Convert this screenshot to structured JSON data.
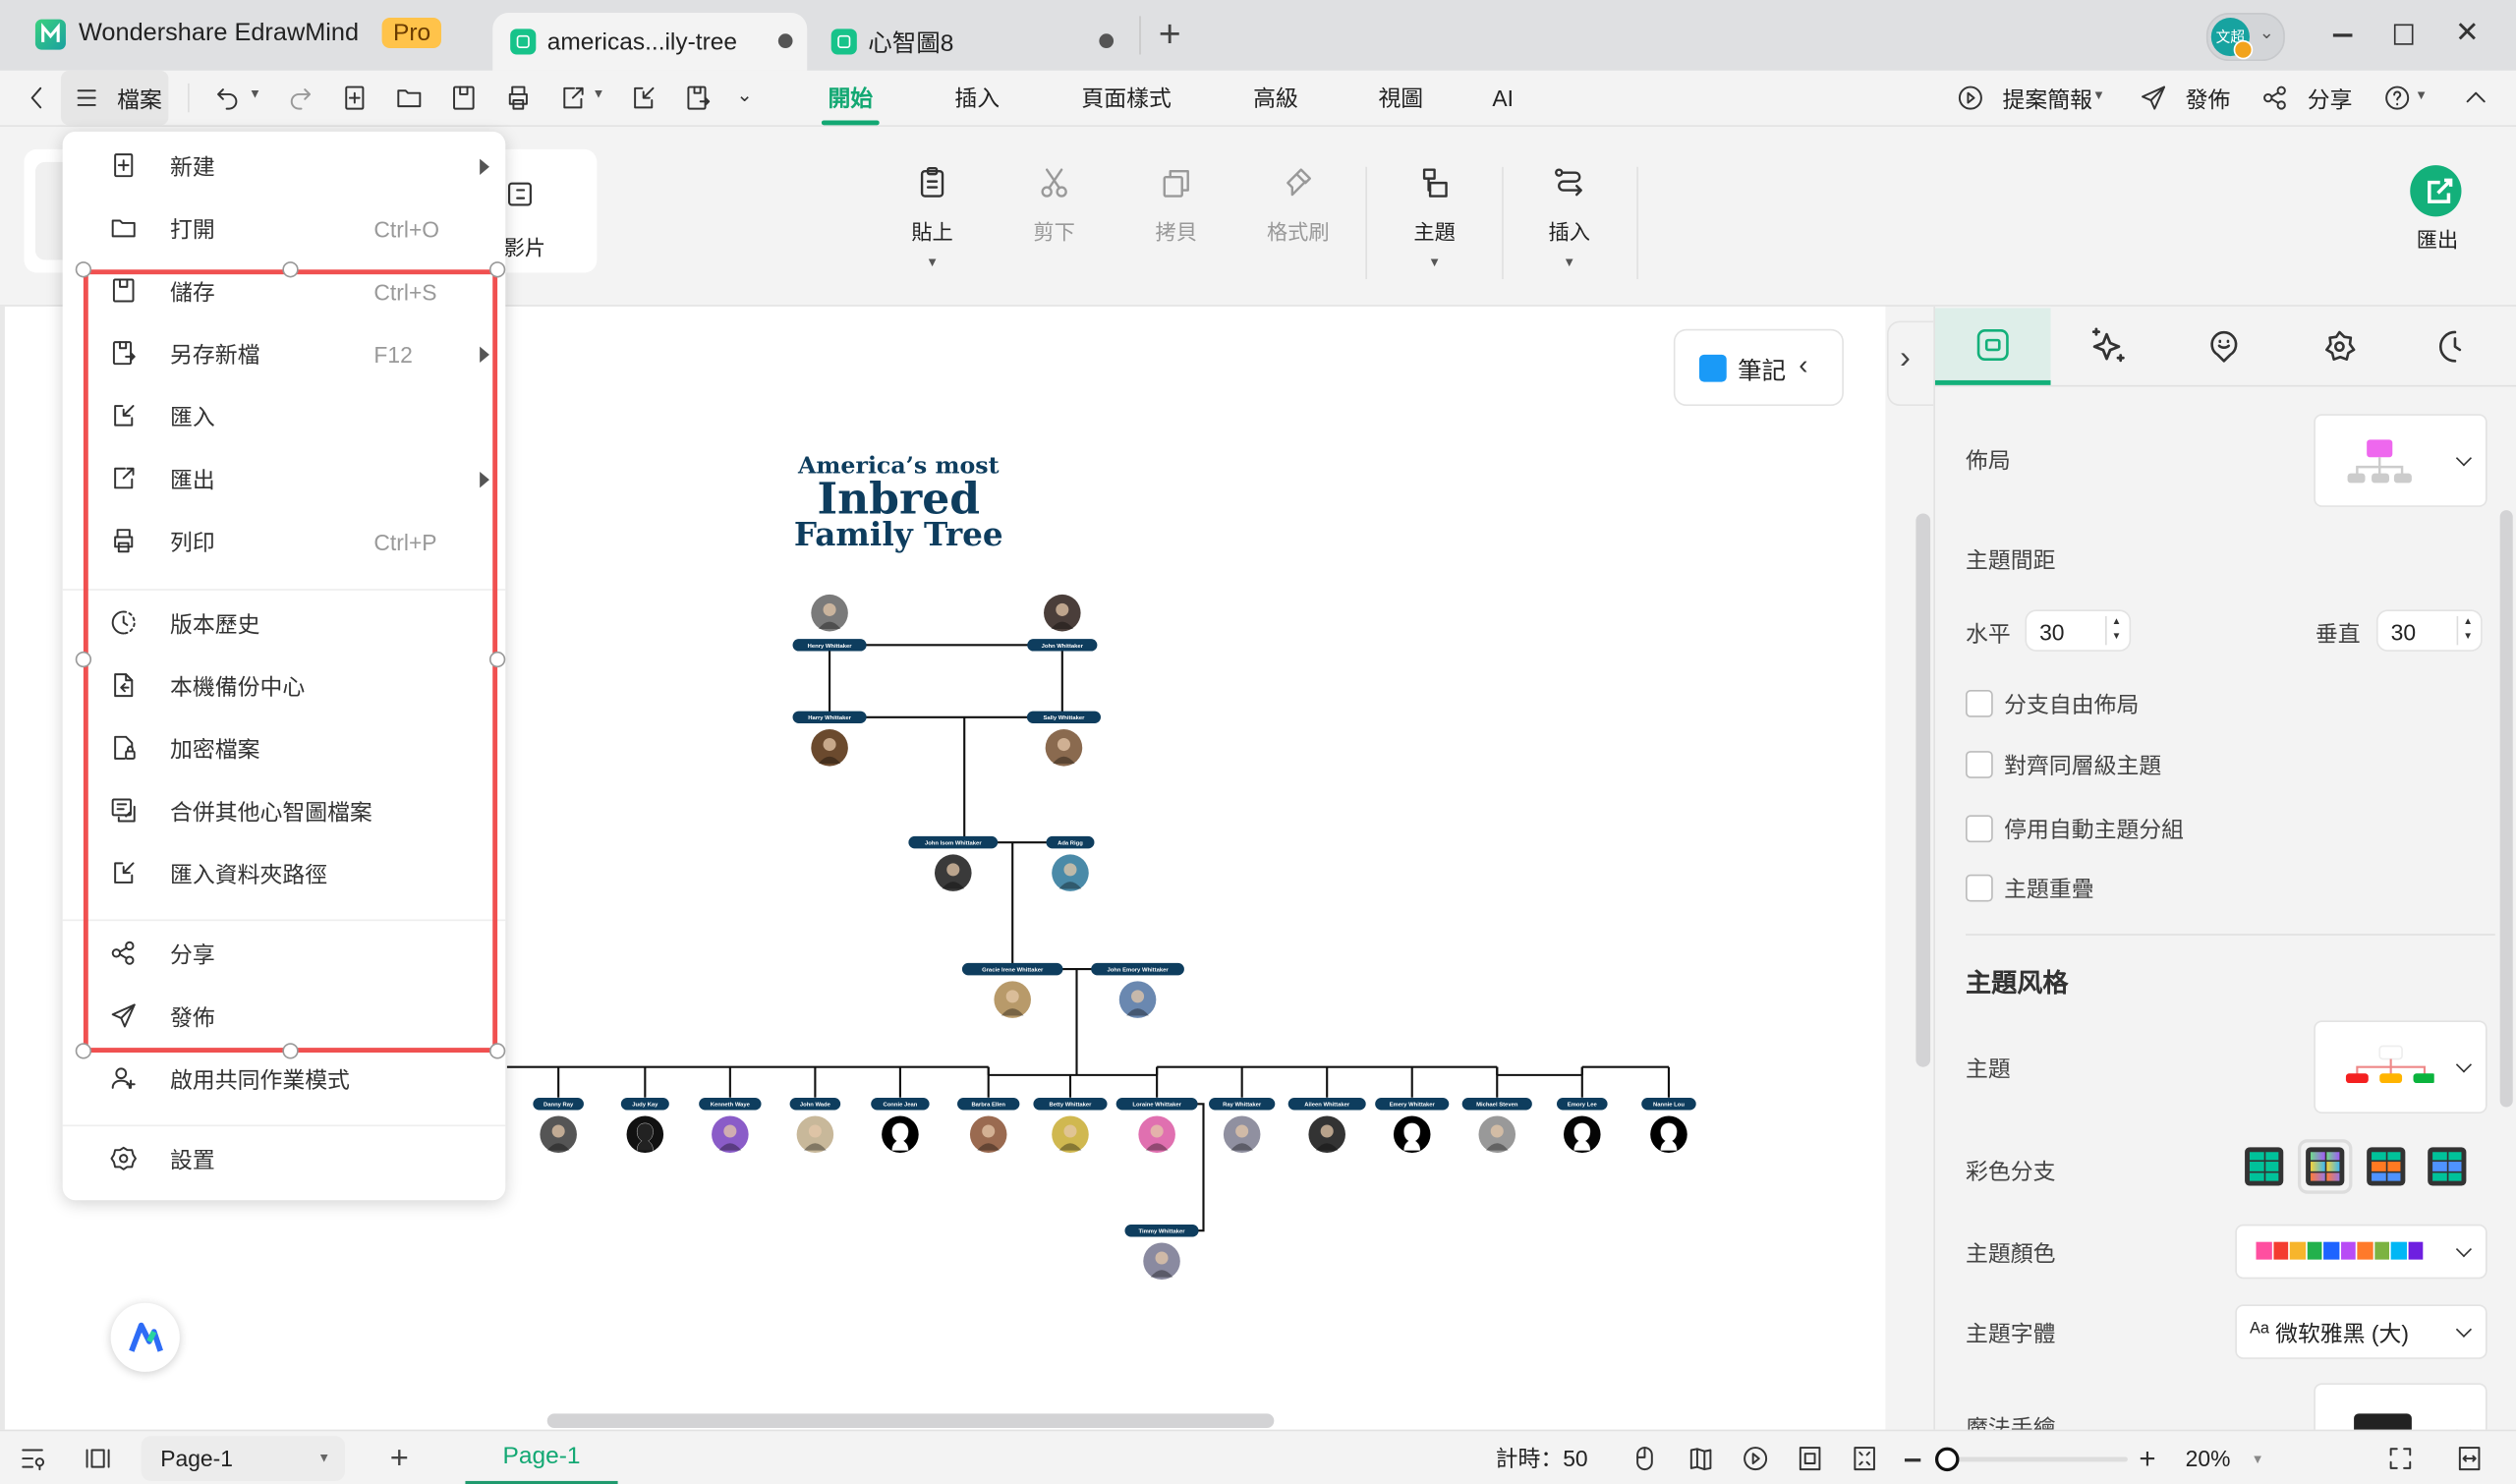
{
  "app": {
    "name": "Wondershare EdrawMind",
    "badge": "Pro",
    "avatar_text": "文超"
  },
  "doc_tabs": [
    {
      "label": "americas...ily-tree",
      "active": true,
      "unsaved": true
    },
    {
      "label": "心智圖8",
      "active": false,
      "unsaved": true
    }
  ],
  "toolbar": {
    "file": "檔案",
    "menu_tabs": [
      "開始",
      "插入",
      "頁面樣式",
      "高級",
      "視圖",
      "AI"
    ],
    "active_tab": "開始",
    "present": "提案簡報",
    "publish": "發佈",
    "share": "分享"
  },
  "ribbon": {
    "partial_label": "影片",
    "buttons": [
      {
        "label": "貼上",
        "icon": "clipboard-icon",
        "enabled": true,
        "caret": true
      },
      {
        "label": "剪下",
        "icon": "scissors-icon",
        "enabled": false,
        "caret": false
      },
      {
        "label": "拷貝",
        "icon": "copy-icon",
        "enabled": false,
        "caret": false
      },
      {
        "label": "格式刷",
        "icon": "format-brush-icon",
        "enabled": false,
        "caret": false
      },
      {
        "label": "主題",
        "icon": "topic-icon",
        "enabled": true,
        "caret": true
      },
      {
        "label": "插入",
        "icon": "connector-icon",
        "enabled": true,
        "caret": true
      }
    ],
    "export": "匯出"
  },
  "file_menu": {
    "groups": [
      [
        {
          "label": "新建",
          "icon": "new-file-icon",
          "submenu": true
        },
        {
          "label": "打開",
          "icon": "folder-icon",
          "shortcut": "Ctrl+O"
        },
        {
          "label": "儲存",
          "icon": "save-icon",
          "shortcut": "Ctrl+S"
        },
        {
          "label": "另存新檔",
          "icon": "save-as-icon",
          "shortcut": "F12",
          "submenu": true
        },
        {
          "label": "匯入",
          "icon": "import-icon"
        },
        {
          "label": "匯出",
          "icon": "export-icon",
          "submenu": true
        },
        {
          "label": "列印",
          "icon": "print-icon",
          "shortcut": "Ctrl+P"
        }
      ],
      [
        {
          "label": "版本歷史",
          "icon": "history-icon"
        },
        {
          "label": "本機備份中心",
          "icon": "backup-icon"
        },
        {
          "label": "加密檔案",
          "icon": "lock-file-icon"
        },
        {
          "label": "合併其他心智圖檔案",
          "icon": "merge-icon"
        },
        {
          "label": "匯入資料夾路徑",
          "icon": "import-folder-icon"
        }
      ],
      [
        {
          "label": "分享",
          "icon": "share-icon"
        },
        {
          "label": "發佈",
          "icon": "send-icon"
        },
        {
          "label": "啟用共同作業模式",
          "icon": "collaborate-icon"
        }
      ],
      [
        {
          "label": "設置",
          "icon": "settings-icon"
        }
      ]
    ]
  },
  "canvas": {
    "notes": "筆記",
    "title": {
      "line1": "America’s most",
      "line2": "Inbred",
      "line3": "Family Tree"
    },
    "people": [
      "Henry Whittaker",
      "John Whittaker",
      "Harry Whittaker",
      "Sally Whittaker",
      "John Isom Whittaker",
      "Ada Rigg",
      "Gracie Irene Whittaker",
      "John Emory Whittaker",
      "Danny Ray",
      "Judy Kay",
      "Kenneth Waye",
      "John Wade",
      "Connie Jean",
      "Barbra Ellen",
      "Betty Whittaker",
      "Loraine Whittaker",
      "Ray Whittaker",
      "Aileen Whittaker",
      "Emery Whittaker",
      "Michael Steven",
      "Emory Lee",
      "Nannie Lou",
      "Timmy Whittaker"
    ],
    "label_color": "#0e3d5e"
  },
  "panel": {
    "layout": "佈局",
    "spacing": "主題間距",
    "horizontal": "水平",
    "horizontal_value": "30",
    "vertical": "垂直",
    "vertical_value": "30",
    "checkboxes": [
      {
        "label": "分支自由佈局",
        "checked": false
      },
      {
        "label": "對齊同層級主題",
        "checked": false
      },
      {
        "label": "停用自動主題分組",
        "checked": false
      },
      {
        "label": "主題重疊",
        "checked": false
      }
    ],
    "style_heading": "主題风格",
    "theme": "主題",
    "rainbow": "彩色分支",
    "theme_color": "主題顏色",
    "theme_colors": [
      "#ff4fa0",
      "#f43c30",
      "#f7b52c",
      "#22b14c",
      "#1e64ff",
      "#b84cf5",
      "#ff7a2a",
      "#7cb342",
      "#00b7f5",
      "#6e1fe0"
    ],
    "theme_font": "主題字體",
    "font_value": "微软雅黑 (大)",
    "font_prefix": "Aa",
    "hand_drawn": "魔法手繪",
    "accent": "#13b07a"
  },
  "statusbar": {
    "page_select": "Page-1",
    "page_tab": "Page-1",
    "count": "計時：50",
    "zoom": "20%",
    "zoom_fraction": 0.05
  }
}
